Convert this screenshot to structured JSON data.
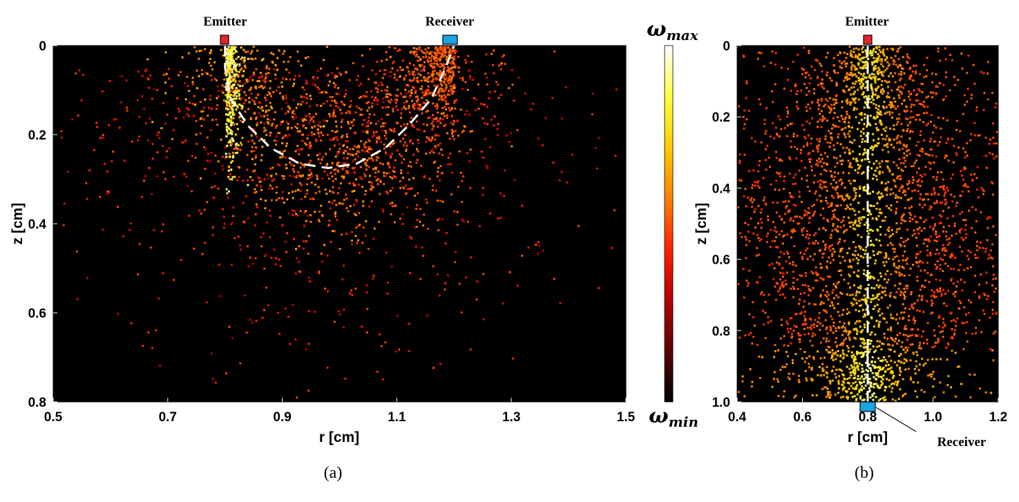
{
  "chart_data": [
    {
      "type": "heatmap",
      "panel_caption": "(a)",
      "xlabel": "r [cm]",
      "ylabel": "z [cm]",
      "xlim": [
        0.5,
        1.5
      ],
      "ylim": [
        0,
        0.8
      ],
      "y_reversed": true,
      "xticks": [
        0.5,
        0.7,
        0.9,
        1.1,
        1.3,
        1.5
      ],
      "xtick_labels": [
        "0.5",
        "0.7",
        "0.9",
        "1.1",
        "1.3",
        "1.5"
      ],
      "yticks": [
        0,
        0.2,
        0.4,
        0.6,
        0.8
      ],
      "ytick_labels": [
        "0",
        "0.2",
        "0.4",
        "0.6",
        "0.8"
      ],
      "annotations": [
        {
          "text": "Emitter",
          "r": 0.8,
          "z": 0,
          "color": "#e3242b"
        },
        {
          "text": "Receiver",
          "r": 1.2,
          "z": 0,
          "color": "#1ea2e6"
        }
      ],
      "mean_path": {
        "style": "white dashed",
        "points": [
          [
            0.8,
            0.0
          ],
          [
            0.8,
            0.05
          ],
          [
            0.81,
            0.12
          ],
          [
            0.84,
            0.18
          ],
          [
            0.88,
            0.23
          ],
          [
            0.93,
            0.265
          ],
          [
            0.98,
            0.275
          ],
          [
            1.03,
            0.265
          ],
          [
            1.08,
            0.23
          ],
          [
            1.12,
            0.18
          ],
          [
            1.16,
            0.12
          ],
          [
            1.185,
            0.05
          ],
          [
            1.2,
            0.0
          ]
        ]
      }
    },
    {
      "type": "heatmap",
      "panel_caption": "(b)",
      "xlabel": "r [cm]",
      "ylabel": "z [cm]",
      "xlim": [
        0.4,
        1.2
      ],
      "ylim": [
        0,
        1.0
      ],
      "y_reversed": true,
      "xticks": [
        0.4,
        0.6,
        0.8,
        1.0,
        1.2
      ],
      "xtick_labels": [
        "0.4",
        "0.6",
        "0.8",
        "1.0",
        "1.2"
      ],
      "yticks": [
        0,
        0.2,
        0.4,
        0.6,
        0.8,
        1.0
      ],
      "ytick_labels": [
        "0",
        "0.2",
        "0.4",
        "0.6",
        "0.8",
        "1.0"
      ],
      "annotations": [
        {
          "text": "Emitter",
          "r": 0.8,
          "z": 0,
          "color": "#e3242b"
        },
        {
          "text": "Receiver",
          "r": 0.8,
          "z": 1.0,
          "color": "#1ea2e6"
        }
      ],
      "mean_path": {
        "style": "white dashed",
        "points": [
          [
            0.8,
            0.0
          ],
          [
            0.8,
            1.0
          ]
        ]
      }
    }
  ],
  "colorbar": {
    "colormap": "hot",
    "colors": [
      "#000000",
      "#5a0000",
      "#b40000",
      "#ff2000",
      "#ff8000",
      "#ffcc00",
      "#ffff40",
      "#ffffff"
    ],
    "max_label": "ω",
    "max_sub": "max",
    "min_label": "ω",
    "min_sub": "min"
  }
}
